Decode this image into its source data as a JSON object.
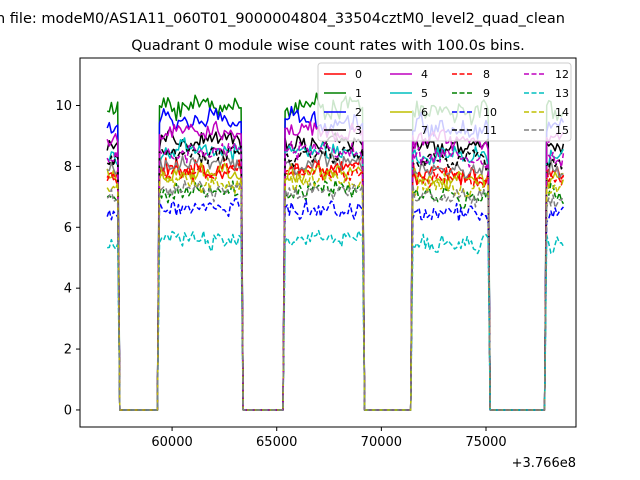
{
  "page": {
    "file_line": "n file: modeM0/AS1A11_060T01_9000004804_33504cztM0_level2_quad_clean"
  },
  "chart_data": {
    "type": "line",
    "title": "Quadrant 0 module wise count rates with 100.0s bins.",
    "xlabel": "",
    "ylabel": "",
    "x_offset_label": "+3.766e8",
    "x_offset": 376600000,
    "xlim": [
      55600,
      79300
    ],
    "ylim": [
      -0.56,
      11.56
    ],
    "x_ticks": [
      60000,
      65000,
      70000,
      75000
    ],
    "x_tick_labels": [
      "60000",
      "65000",
      "70000",
      "75000"
    ],
    "y_ticks": [
      0,
      2,
      4,
      6,
      8,
      10
    ],
    "y_tick_labels": [
      "0",
      "2",
      "4",
      "6",
      "8",
      "10"
    ],
    "grid": false,
    "legend_placement": "top-right",
    "legend_columns": 4,
    "bin_seconds": 100,
    "time_range": [
      56900,
      78700
    ],
    "active_intervals": [
      [
        56900,
        57400
      ],
      [
        59400,
        63300
      ],
      [
        65400,
        69100
      ],
      [
        71500,
        75100
      ],
      [
        77900,
        78700
      ]
    ],
    "series": [
      {
        "name": "0",
        "color": "#ff0000",
        "dash": "solid",
        "level": 7.7,
        "noise": 0.35
      },
      {
        "name": "1",
        "color": "#008000",
        "dash": "solid",
        "level": 9.8,
        "noise": 0.35
      },
      {
        "name": "2",
        "color": "#0000ff",
        "dash": "solid",
        "level": 9.3,
        "noise": 0.35
      },
      {
        "name": "3",
        "color": "#000000",
        "dash": "solid",
        "level": 8.6,
        "noise": 0.3
      },
      {
        "name": "4",
        "color": "#bf00bf",
        "dash": "solid",
        "level": 8.9,
        "noise": 0.3
      },
      {
        "name": "5",
        "color": "#00bfbf",
        "dash": "solid",
        "level": 8.3,
        "noise": 0.3
      },
      {
        "name": "6",
        "color": "#bfbf00",
        "dash": "solid",
        "level": 7.6,
        "noise": 0.3
      },
      {
        "name": "7",
        "color": "#808080",
        "dash": "solid",
        "level": 7.9,
        "noise": 0.3
      },
      {
        "name": "8",
        "color": "#ff0000",
        "dash": "dashed",
        "level": 7.6,
        "noise": 0.3
      },
      {
        "name": "9",
        "color": "#008000",
        "dash": "dashed",
        "level": 7.0,
        "noise": 0.3
      },
      {
        "name": "10",
        "color": "#0000ff",
        "dash": "dashed",
        "level": 6.4,
        "noise": 0.3
      },
      {
        "name": "11",
        "color": "#000000",
        "dash": "dashed",
        "level": 8.2,
        "noise": 0.3
      },
      {
        "name": "12",
        "color": "#bf00bf",
        "dash": "dashed",
        "level": 8.3,
        "noise": 0.3
      },
      {
        "name": "13",
        "color": "#00bfbf",
        "dash": "dashed",
        "level": 5.4,
        "noise": 0.3
      },
      {
        "name": "14",
        "color": "#bfbf00",
        "dash": "dashed",
        "level": 7.3,
        "noise": 0.3
      },
      {
        "name": "15",
        "color": "#808080",
        "dash": "dashed",
        "level": 7.0,
        "noise": 0.3
      }
    ]
  }
}
